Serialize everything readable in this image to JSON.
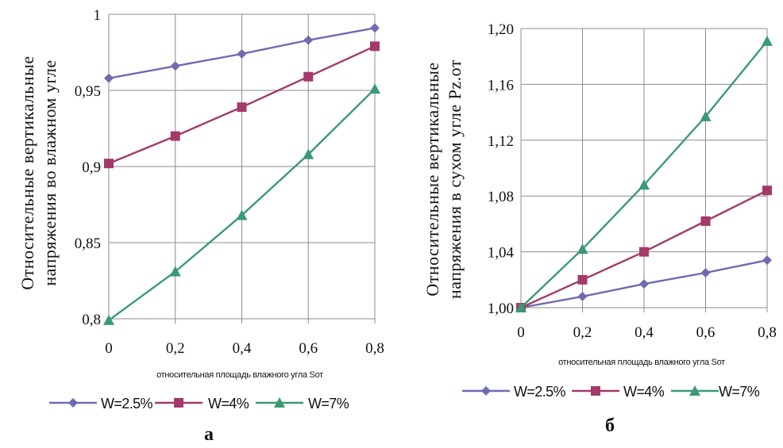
{
  "chart_data": [
    {
      "type": "line",
      "panel_label": "а",
      "x": [
        0,
        0.2,
        0.4,
        0.6,
        0.8
      ],
      "x_tick_labels": [
        "0",
        "0,2",
        "0,4",
        "0,6",
        "0,8"
      ],
      "ylim": [
        0.8,
        1.0
      ],
      "y_tick_labels": [
        "0,8",
        "0,85",
        "0,9",
        "0,95",
        "1"
      ],
      "y_ticks": [
        0.8,
        0.85,
        0.9,
        0.95,
        1.0
      ],
      "xlabel": "относительная площадь влажного угла Sот",
      "ylabel_line1": "Относительные вертикальные",
      "ylabel_line2": "напряжения во влажном угле",
      "grid": true,
      "legend_position": "bottom",
      "series": [
        {
          "name": "W=2.5%",
          "marker": "diamond",
          "color": "#6f6bb2",
          "values": [
            0.958,
            0.966,
            0.974,
            0.983,
            0.991
          ]
        },
        {
          "name": "W=4%",
          "marker": "square",
          "color": "#a33a6a",
          "values": [
            0.902,
            0.92,
            0.939,
            0.959,
            0.979
          ]
        },
        {
          "name": "W=7%",
          "marker": "triangle",
          "color": "#3a9a73",
          "values": [
            0.799,
            0.831,
            0.868,
            0.908,
            0.951
          ]
        }
      ]
    },
    {
      "type": "line",
      "panel_label": "б",
      "x": [
        0,
        0.2,
        0.4,
        0.6,
        0.8
      ],
      "x_tick_labels": [
        "0",
        "0,2",
        "0,4",
        "0,6",
        "0,8"
      ],
      "ylim": [
        1.0,
        1.2
      ],
      "y_tick_labels": [
        "1,00",
        "1,04",
        "1,08",
        "1,12",
        "1,16",
        "1,20"
      ],
      "y_ticks": [
        1.0,
        1.04,
        1.08,
        1.12,
        1.16,
        1.2
      ],
      "xlabel": "относительная площадь влажного угла Sот",
      "ylabel_line1": "Относительные вертикальные",
      "ylabel_line2": "напряжения в сухом угле Pz.от",
      "grid": true,
      "legend_position": "bottom",
      "series": [
        {
          "name": "W=2.5%",
          "marker": "diamond",
          "color": "#6f6bb2",
          "values": [
            1.0,
            1.008,
            1.017,
            1.025,
            1.034
          ]
        },
        {
          "name": "W=4%",
          "marker": "square",
          "color": "#a33a6a",
          "values": [
            1.0,
            1.02,
            1.04,
            1.062,
            1.084
          ]
        },
        {
          "name": "W=7%",
          "marker": "triangle",
          "color": "#3a9a73",
          "values": [
            1.0,
            1.042,
            1.088,
            1.137,
            1.191
          ]
        }
      ]
    }
  ]
}
